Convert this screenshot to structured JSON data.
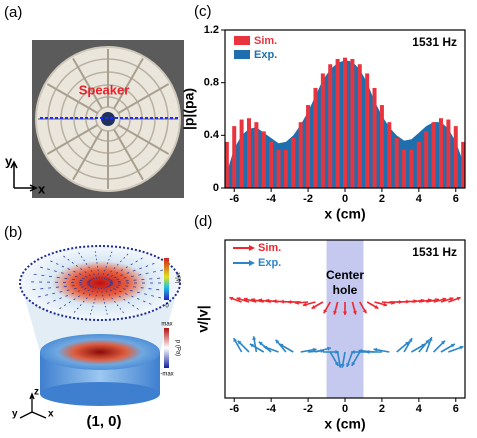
{
  "photo": {
    "panel_label": "(a)",
    "annotation": "Speaker",
    "axis_y": "y",
    "axis_x": "x"
  },
  "render": {
    "panel_label": "(b)",
    "colorbar_top": {
      "label": "v/|v|",
      "min": "0"
    },
    "colorbar_bottom": {
      "max": "max",
      "label": "p (Pa)",
      "min": "-max"
    },
    "axis_z": "z",
    "axis_y": "y",
    "axis_x": "x",
    "mode": "(1, 0)"
  },
  "chart_data": [
    {
      "type": "bar_area",
      "panel_label": "(c)",
      "annotation": "1531 Hz",
      "ylabel": "|p|(pa)",
      "xlabel": "x (cm)",
      "xlim": [
        -6.5,
        6.5
      ],
      "xticks": [
        -6,
        -4,
        -2,
        0,
        2,
        4,
        6
      ],
      "ylim": [
        0,
        1.2
      ],
      "yticks": [
        0,
        0.4,
        0.8,
        1.2
      ],
      "x": [
        -6.4,
        -6.0,
        -5.6,
        -5.2,
        -4.8,
        -4.4,
        -4.0,
        -3.6,
        -3.2,
        -2.8,
        -2.4,
        -2.0,
        -1.6,
        -1.2,
        -0.8,
        -0.4,
        0,
        0.4,
        0.8,
        1.2,
        1.6,
        2.0,
        2.4,
        2.8,
        3.2,
        3.6,
        4.0,
        4.4,
        4.8,
        5.2,
        5.6,
        6.0,
        6.4
      ],
      "series": [
        {
          "name": "Sim.",
          "color": "#e8343e",
          "values": [
            0.35,
            0.47,
            0.52,
            0.53,
            0.5,
            0.43,
            0.35,
            0.29,
            0.29,
            0.38,
            0.5,
            0.63,
            0.76,
            0.87,
            0.94,
            0.98,
            0.99,
            0.98,
            0.94,
            0.87,
            0.76,
            0.63,
            0.5,
            0.38,
            0.29,
            0.29,
            0.35,
            0.43,
            0.5,
            0.53,
            0.52,
            0.47,
            0.35
          ]
        },
        {
          "name": "Exp.",
          "color": "#1f6fae",
          "values": [
            0.12,
            0.3,
            0.4,
            0.45,
            0.46,
            0.42,
            0.38,
            0.34,
            0.35,
            0.4,
            0.48,
            0.58,
            0.7,
            0.82,
            0.9,
            0.95,
            0.97,
            0.96,
            0.9,
            0.8,
            0.66,
            0.55,
            0.46,
            0.4,
            0.36,
            0.37,
            0.42,
            0.47,
            0.5,
            0.5,
            0.45,
            0.35,
            0.2
          ]
        }
      ]
    },
    {
      "type": "quiver",
      "panel_label": "(d)",
      "annotation": "1531 Hz",
      "ylabel": "v/|v|",
      "xlabel": "x (cm)",
      "xlim": [
        -6.5,
        6.5
      ],
      "xticks": [
        -6,
        -4,
        -2,
        0,
        2,
        4,
        6
      ],
      "band": {
        "label_lines": [
          "Center",
          "hole"
        ],
        "x_range": [
          -1,
          1
        ],
        "color": "#c5c8ef"
      },
      "x": [
        -5.6,
        -5.2,
        -4.8,
        -4.4,
        -4.0,
        -3.6,
        -3.2,
        -2.8,
        -2.4,
        -2.0,
        -1.6,
        -1.2,
        -0.8,
        -0.4,
        0,
        0.4,
        0.8,
        1.2,
        1.6,
        2.0,
        2.4,
        2.8,
        3.2,
        3.6,
        4.0,
        4.4,
        4.8,
        5.2,
        5.6
      ],
      "series": [
        {
          "name": "Sim.",
          "color": "#f0262e",
          "angles": [
            160,
            162,
            165,
            168,
            170,
            172,
            175,
            178,
            180,
            185,
            195,
            210,
            240,
            255,
            270,
            285,
            300,
            330,
            345,
            355,
            0,
            2,
            5,
            8,
            10,
            12,
            15,
            18,
            20
          ]
        },
        {
          "name": "Exp.",
          "color": "#2a86c8",
          "angles": [
            120,
            135,
            100,
            150,
            140,
            160,
            130,
            150,
            10,
            5,
            15,
            0,
            300,
            280,
            260,
            250,
            240,
            180,
            175,
            180,
            170,
            40,
            60,
            30,
            50,
            70,
            45,
            30,
            20
          ]
        }
      ]
    }
  ]
}
